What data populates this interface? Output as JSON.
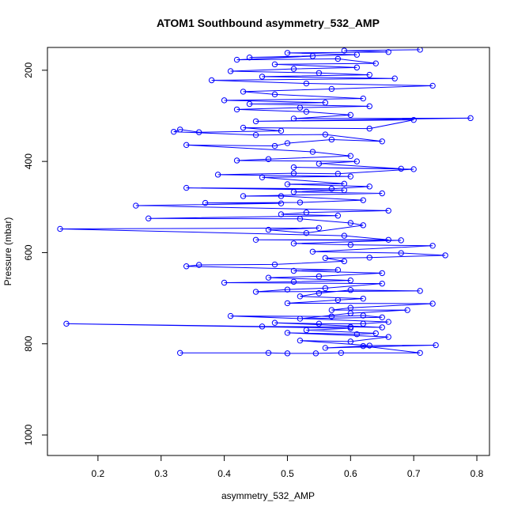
{
  "chart_data": {
    "type": "scatter",
    "title": "ATOM1 Southbound asymmetry_532_AMP",
    "xlabel": "asymmetry_532_AMP",
    "ylabel": "Pressure (mbar)",
    "xlim": [
      0.12,
      0.82
    ],
    "ylim": [
      1045,
      150
    ],
    "y_reversed": true,
    "x_ticks": [
      0.2,
      0.3,
      0.4,
      0.5,
      0.6,
      0.7,
      0.8
    ],
    "x_tick_labels": [
      "0.2",
      "0.3",
      "0.4",
      "0.5",
      "0.6",
      "0.7",
      "0.8"
    ],
    "y_ticks": [
      200,
      400,
      600,
      800,
      1000
    ],
    "y_tick_labels": [
      "200",
      "400",
      "600",
      "800",
      "1000"
    ],
    "grid": false,
    "legend": "none",
    "marker": "open-circle",
    "connected": true,
    "color": "#0000ff",
    "series": [
      {
        "points": [
          [
            0.33,
            820
          ],
          [
            0.47,
            820
          ],
          [
            0.5,
            821
          ],
          [
            0.545,
            821
          ],
          [
            0.585,
            820
          ],
          [
            0.71,
            820
          ],
          [
            0.62,
            805
          ],
          [
            0.56,
            809
          ],
          [
            0.735,
            803
          ],
          [
            0.63,
            804
          ],
          [
            0.52,
            793
          ],
          [
            0.6,
            795
          ],
          [
            0.66,
            785
          ],
          [
            0.5,
            776
          ],
          [
            0.61,
            779
          ],
          [
            0.64,
            777
          ],
          [
            0.53,
            770
          ],
          [
            0.6,
            766
          ],
          [
            0.15,
            756
          ],
          [
            0.46,
            762
          ],
          [
            0.6,
            763
          ],
          [
            0.65,
            764
          ],
          [
            0.48,
            754
          ],
          [
            0.55,
            756
          ],
          [
            0.62,
            756
          ],
          [
            0.66,
            752
          ],
          [
            0.41,
            739
          ],
          [
            0.57,
            740
          ],
          [
            0.62,
            738
          ],
          [
            0.65,
            742
          ],
          [
            0.52,
            745
          ],
          [
            0.6,
            733
          ],
          [
            0.69,
            726
          ],
          [
            0.57,
            726
          ],
          [
            0.6,
            721
          ],
          [
            0.73,
            712
          ],
          [
            0.5,
            711
          ],
          [
            0.58,
            704
          ],
          [
            0.62,
            701
          ],
          [
            0.52,
            696
          ],
          [
            0.55,
            689
          ],
          [
            0.6,
            682
          ],
          [
            0.71,
            684
          ],
          [
            0.45,
            686
          ],
          [
            0.5,
            681
          ],
          [
            0.56,
            678
          ],
          [
            0.65,
            668
          ],
          [
            0.4,
            666
          ],
          [
            0.51,
            664
          ],
          [
            0.6,
            661
          ],
          [
            0.47,
            655
          ],
          [
            0.55,
            652
          ],
          [
            0.65,
            645
          ],
          [
            0.51,
            640
          ],
          [
            0.58,
            638
          ],
          [
            0.34,
            630
          ],
          [
            0.36,
            627
          ],
          [
            0.48,
            626
          ],
          [
            0.59,
            619
          ],
          [
            0.56,
            612
          ],
          [
            0.63,
            611
          ],
          [
            0.75,
            606
          ],
          [
            0.68,
            601
          ],
          [
            0.54,
            598
          ],
          [
            0.73,
            585
          ],
          [
            0.6,
            583
          ],
          [
            0.51,
            580
          ],
          [
            0.68,
            573
          ],
          [
            0.45,
            572
          ],
          [
            0.66,
            572
          ],
          [
            0.59,
            563
          ],
          [
            0.14,
            548
          ],
          [
            0.55,
            546
          ],
          [
            0.47,
            550
          ],
          [
            0.53,
            557
          ],
          [
            0.62,
            540
          ],
          [
            0.6,
            535
          ],
          [
            0.52,
            526
          ],
          [
            0.28,
            525
          ],
          [
            0.58,
            519
          ],
          [
            0.49,
            516
          ],
          [
            0.53,
            512
          ],
          [
            0.66,
            508
          ],
          [
            0.26,
            497
          ],
          [
            0.49,
            492
          ],
          [
            0.37,
            491
          ],
          [
            0.52,
            490
          ],
          [
            0.62,
            485
          ],
          [
            0.49,
            476
          ],
          [
            0.43,
            476
          ],
          [
            0.65,
            470
          ],
          [
            0.51,
            467
          ],
          [
            0.59,
            463
          ],
          [
            0.34,
            458
          ],
          [
            0.57,
            460
          ],
          [
            0.63,
            455
          ],
          [
            0.5,
            450
          ],
          [
            0.59,
            449
          ],
          [
            0.46,
            435
          ],
          [
            0.6,
            433
          ],
          [
            0.39,
            429
          ],
          [
            0.51,
            426
          ],
          [
            0.58,
            427
          ],
          [
            0.7,
            417
          ],
          [
            0.51,
            413
          ],
          [
            0.68,
            416
          ],
          [
            0.55,
            405
          ],
          [
            0.61,
            400
          ],
          [
            0.42,
            398
          ],
          [
            0.47,
            395
          ],
          [
            0.6,
            388
          ],
          [
            0.54,
            379
          ],
          [
            0.34,
            364
          ],
          [
            0.48,
            366
          ],
          [
            0.5,
            360
          ],
          [
            0.57,
            352
          ],
          [
            0.65,
            356
          ],
          [
            0.56,
            341
          ],
          [
            0.45,
            342
          ],
          [
            0.32,
            335
          ],
          [
            0.33,
            330
          ],
          [
            0.36,
            336
          ],
          [
            0.49,
            333
          ],
          [
            0.43,
            326
          ],
          [
            0.63,
            328
          ],
          [
            0.7,
            309
          ],
          [
            0.45,
            312
          ],
          [
            0.79,
            305
          ],
          [
            0.51,
            306
          ],
          [
            0.6,
            298
          ],
          [
            0.53,
            291
          ],
          [
            0.42,
            286
          ],
          [
            0.52,
            282
          ],
          [
            0.63,
            279
          ],
          [
            0.44,
            274
          ],
          [
            0.56,
            271
          ],
          [
            0.4,
            266
          ],
          [
            0.62,
            262
          ],
          [
            0.48,
            253
          ],
          [
            0.43,
            247
          ],
          [
            0.57,
            241
          ],
          [
            0.73,
            234
          ],
          [
            0.53,
            229
          ],
          [
            0.38,
            222
          ],
          [
            0.67,
            218
          ],
          [
            0.46,
            214
          ],
          [
            0.63,
            210
          ],
          [
            0.55,
            206
          ],
          [
            0.41,
            202
          ],
          [
            0.51,
            197
          ],
          [
            0.61,
            194
          ],
          [
            0.48,
            187
          ],
          [
            0.64,
            185
          ],
          [
            0.58,
            175
          ],
          [
            0.42,
            177
          ],
          [
            0.54,
            169
          ],
          [
            0.44,
            172
          ],
          [
            0.61,
            166
          ],
          [
            0.5,
            162
          ],
          [
            0.66,
            160
          ],
          [
            0.59,
            157
          ],
          [
            0.71,
            155
          ]
        ]
      }
    ]
  }
}
